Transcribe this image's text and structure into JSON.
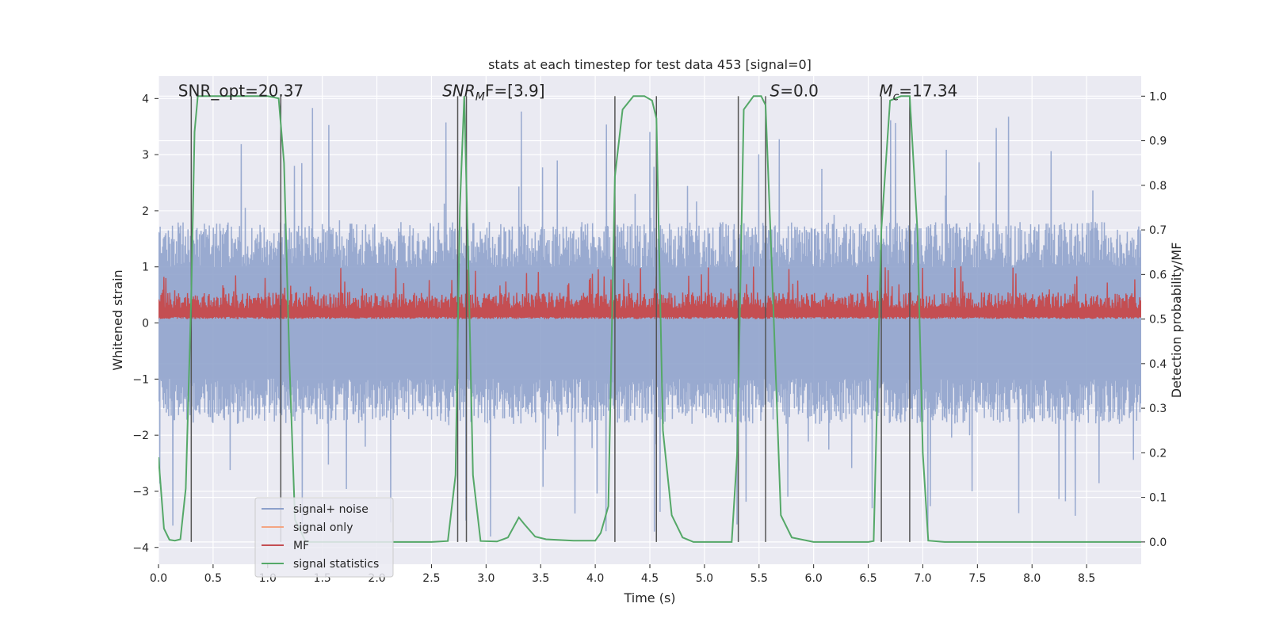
{
  "chart_data": {
    "type": "line",
    "title": "stats at each timestep for test data 453 [signal=0]",
    "xlabel": "Time (s)",
    "ylabel_left": "Whitened strain",
    "ylabel_right": "Detection probability/MF",
    "xlim": [
      0.0,
      9.0
    ],
    "ylim_left": [
      -4.3,
      4.4
    ],
    "ylim_right": [
      -0.05,
      1.045
    ],
    "x_ticks": [
      0.0,
      0.5,
      1.0,
      1.5,
      2.0,
      2.5,
      3.0,
      3.5,
      4.0,
      4.5,
      5.0,
      5.5,
      6.0,
      6.5,
      7.0,
      7.5,
      8.0,
      8.5
    ],
    "x_tick_labels": [
      "0.0",
      "0.5",
      "1.0",
      "1.5",
      "2.0",
      "2.5",
      "3.0",
      "3.5",
      "4.0",
      "4.5",
      "5.0",
      "5.5",
      "6.0",
      "6.5",
      "7.0",
      "7.5",
      "8.0",
      "8.5"
    ],
    "y_left_ticks": [
      4,
      3,
      2,
      1,
      0,
      -1,
      -2,
      -3,
      -4
    ],
    "y_left_tick_labels": [
      "4",
      "3",
      "2",
      "1",
      "0",
      "−1",
      "−2",
      "−3",
      "−4"
    ],
    "y_right_ticks": [
      1.0,
      0.9,
      0.8,
      0.7,
      0.6,
      0.5,
      0.4,
      0.3,
      0.2,
      0.1,
      0.0
    ],
    "y_right_tick_labels": [
      "1.0",
      "0.9",
      "0.8",
      "0.7",
      "0.6",
      "0.5",
      "0.4",
      "0.3",
      "0.2",
      "0.1",
      "0.0"
    ],
    "grid": true,
    "legend": {
      "placement": "lower-left",
      "entries": [
        {
          "label": "signal+ noise",
          "color": "#8da0cb"
        },
        {
          "label": "signal only",
          "color": "#f4a582"
        },
        {
          "label": "MF",
          "color": "#c44e52"
        },
        {
          "label": "signal statistics",
          "color": "#55a868"
        }
      ]
    },
    "annotations": [
      {
        "x": 0.18,
        "y_right": 1.0,
        "text": "SNR_opt=20.37",
        "math": false
      },
      {
        "x": 2.6,
        "y_right": 1.0,
        "main": "SNR",
        "sub": "M",
        "tail": "F=[3.9]",
        "math": true
      },
      {
        "x": 5.6,
        "y_right": 1.0,
        "main": "S",
        "sub": "",
        "tail": "=0.0",
        "math": true
      },
      {
        "x": 6.6,
        "y_right": 1.0,
        "main": "M",
        "sub": "c",
        "tail": "=17.34",
        "math": true
      }
    ],
    "vertical_lines": [
      0.3,
      1.12,
      2.74,
      2.82,
      4.18,
      4.56,
      5.31,
      5.56,
      6.62,
      6.88
    ],
    "series": [
      {
        "name": "signal+ noise",
        "axis": "left",
        "color": "#8da0cb",
        "x_range": [
          0.0,
          9.0
        ],
        "band": {
          "mean": 0.0,
          "amplitude_typical": 1.8,
          "amplitude_max": 3.85
        }
      },
      {
        "name": "MF",
        "axis": "right",
        "color": "#c44e52",
        "x_range": [
          0.0,
          9.0
        ],
        "band": {
          "min": 0.5,
          "typical_max": 0.56,
          "max": 0.62
        }
      },
      {
        "name": "signal statistics",
        "axis": "right",
        "color": "#55a868",
        "x": [
          0.0,
          0.05,
          0.1,
          0.15,
          0.2,
          0.25,
          0.3,
          0.33,
          0.36,
          0.4,
          0.6,
          0.8,
          1.0,
          1.1,
          1.15,
          1.2,
          1.25,
          1.35,
          1.5,
          2.0,
          2.5,
          2.65,
          2.72,
          2.76,
          2.8,
          2.84,
          2.88,
          2.95,
          3.1,
          3.2,
          3.3,
          3.35,
          3.45,
          3.55,
          3.8,
          4.0,
          4.05,
          4.12,
          4.18,
          4.25,
          4.35,
          4.45,
          4.52,
          4.56,
          4.62,
          4.7,
          4.8,
          4.9,
          5.0,
          5.25,
          5.3,
          5.36,
          5.45,
          5.52,
          5.56,
          5.62,
          5.7,
          5.8,
          6.0,
          6.5,
          6.55,
          6.62,
          6.7,
          6.8,
          6.88,
          6.95,
          7.0,
          7.05,
          7.2,
          8.0,
          9.0
        ],
        "y": [
          0.19,
          0.03,
          0.005,
          0.003,
          0.006,
          0.12,
          0.55,
          0.92,
          1.0,
          1.0,
          1.0,
          1.0,
          1.0,
          0.995,
          0.85,
          0.4,
          0.05,
          0.0,
          0.0,
          0.0,
          0.0,
          0.002,
          0.15,
          0.75,
          1.0,
          0.6,
          0.15,
          0.002,
          0.001,
          0.01,
          0.055,
          0.04,
          0.012,
          0.006,
          0.003,
          0.003,
          0.02,
          0.08,
          0.82,
          0.97,
          1.0,
          1.0,
          0.99,
          0.95,
          0.25,
          0.06,
          0.01,
          0.0,
          0.0,
          0.0,
          0.2,
          0.97,
          1.0,
          1.0,
          0.98,
          0.6,
          0.06,
          0.01,
          0.0,
          0.0,
          0.002,
          0.7,
          0.99,
          1.0,
          1.0,
          0.7,
          0.2,
          0.003,
          0.0,
          0.0,
          0.0
        ]
      }
    ]
  }
}
